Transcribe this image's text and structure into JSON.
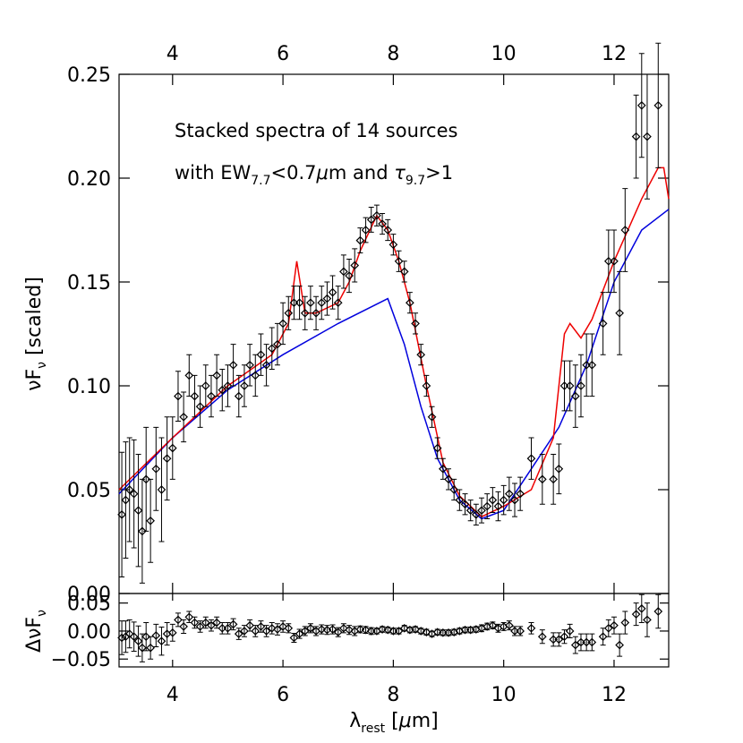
{
  "chart_data": {
    "type": "scatter",
    "annotations": [
      "Stacked spectra of 14 sources",
      [
        "with EW",
        "7.7",
        "<0.7",
        "μ",
        "m and ",
        "τ",
        "9.7",
        ">1"
      ]
    ],
    "ylabel": [
      "νF",
      "ν",
      " [scaled]"
    ],
    "residual_ylabel": [
      "ΔνF",
      "ν"
    ],
    "xlabel": [
      "λ",
      "rest",
      " [",
      "μ",
      "m]"
    ],
    "xlim": [
      3.03,
      12.99
    ],
    "xticks": [
      4,
      6,
      8,
      10,
      12
    ],
    "ylim": [
      0,
      0.25
    ],
    "yticks": [
      {
        "value": 0,
        "label": "0.00"
      },
      {
        "value": 0.05,
        "label": "0.05"
      },
      {
        "value": 0.1,
        "label": "0.10"
      },
      {
        "value": 0.15,
        "label": "0.15"
      },
      {
        "value": 0.2,
        "label": "0.20"
      },
      {
        "value": 0.25,
        "label": "0.25"
      }
    ],
    "y2lim": [
      -0.064,
      0.067
    ],
    "y2ticks": [
      {
        "value": -0.05,
        "label": "−0.05"
      },
      {
        "value": 0,
        "label": "0.00"
      },
      {
        "value": 0.05,
        "label": "0.05"
      }
    ],
    "data": {
      "color": "#000000",
      "x": [
        3.08,
        3.15,
        3.22,
        3.3,
        3.38,
        3.45,
        3.52,
        3.6,
        3.7,
        3.8,
        3.9,
        4.0,
        4.1,
        4.2,
        4.3,
        4.4,
        4.5,
        4.6,
        4.7,
        4.8,
        4.9,
        5.0,
        5.1,
        5.2,
        5.3,
        5.4,
        5.5,
        5.6,
        5.7,
        5.8,
        5.9,
        6.0,
        6.1,
        6.2,
        6.3,
        6.4,
        6.5,
        6.6,
        6.7,
        6.8,
        6.9,
        7.0,
        7.1,
        7.2,
        7.3,
        7.4,
        7.5,
        7.6,
        7.7,
        7.8,
        7.9,
        8.0,
        8.1,
        8.2,
        8.3,
        8.4,
        8.5,
        8.6,
        8.7,
        8.8,
        8.9,
        9.0,
        9.1,
        9.2,
        9.3,
        9.4,
        9.5,
        9.6,
        9.7,
        9.8,
        9.9,
        10.0,
        10.1,
        10.2,
        10.3,
        10.5,
        10.7,
        10.9,
        11.0,
        11.1,
        11.2,
        11.3,
        11.4,
        11.5,
        11.6,
        11.8,
        11.9,
        12.0,
        12.1,
        12.2,
        12.4,
        12.5,
        12.6,
        12.8
      ],
      "values": [
        0.038,
        0.045,
        0.05,
        0.048,
        0.04,
        0.03,
        0.055,
        0.035,
        0.06,
        0.05,
        0.065,
        0.07,
        0.095,
        0.085,
        0.105,
        0.095,
        0.09,
        0.1,
        0.095,
        0.105,
        0.098,
        0.1,
        0.11,
        0.095,
        0.1,
        0.11,
        0.105,
        0.115,
        0.11,
        0.118,
        0.12,
        0.13,
        0.135,
        0.14,
        0.14,
        0.135,
        0.14,
        0.135,
        0.14,
        0.142,
        0.145,
        0.14,
        0.155,
        0.153,
        0.158,
        0.17,
        0.175,
        0.18,
        0.182,
        0.178,
        0.175,
        0.168,
        0.16,
        0.155,
        0.14,
        0.13,
        0.115,
        0.1,
        0.085,
        0.07,
        0.06,
        0.055,
        0.05,
        0.045,
        0.043,
        0.04,
        0.038,
        0.04,
        0.042,
        0.045,
        0.042,
        0.045,
        0.048,
        0.045,
        0.048,
        0.065,
        0.055,
        0.055,
        0.06,
        0.1,
        0.1,
        0.095,
        0.1,
        0.11,
        0.11,
        0.13,
        0.16,
        0.16,
        0.135,
        0.175,
        0.22,
        0.235,
        0.22,
        0.235
      ],
      "errors": [
        0.03,
        0.028,
        0.025,
        0.026,
        0.027,
        0.025,
        0.025,
        0.02,
        0.02,
        0.025,
        0.02,
        0.015,
        0.012,
        0.012,
        0.01,
        0.01,
        0.01,
        0.01,
        0.01,
        0.01,
        0.01,
        0.01,
        0.01,
        0.01,
        0.01,
        0.01,
        0.01,
        0.01,
        0.01,
        0.01,
        0.01,
        0.01,
        0.008,
        0.008,
        0.008,
        0.008,
        0.008,
        0.008,
        0.008,
        0.008,
        0.008,
        0.008,
        0.008,
        0.008,
        0.008,
        0.006,
        0.006,
        0.006,
        0.005,
        0.005,
        0.005,
        0.005,
        0.005,
        0.005,
        0.005,
        0.005,
        0.005,
        0.005,
        0.005,
        0.005,
        0.005,
        0.005,
        0.005,
        0.005,
        0.005,
        0.005,
        0.005,
        0.006,
        0.006,
        0.006,
        0.007,
        0.007,
        0.008,
        0.008,
        0.008,
        0.01,
        0.012,
        0.012,
        0.012,
        0.012,
        0.012,
        0.015,
        0.015,
        0.015,
        0.015,
        0.015,
        0.015,
        0.015,
        0.02,
        0.02,
        0.02,
        0.025,
        0.03,
        0.03
      ],
      "residuals": [
        -0.012,
        -0.01,
        -0.005,
        -0.01,
        -0.018,
        -0.03,
        -0.01,
        -0.03,
        -0.008,
        -0.018,
        -0.005,
        -0.003,
        0.02,
        0.008,
        0.025,
        0.015,
        0.008,
        0.015,
        0.01,
        0.015,
        0.005,
        0.005,
        0.012,
        -0.005,
        0,
        0.01,
        0,
        0.008,
        0,
        0.005,
        0.003,
        0.008,
        0.005,
        -0.012,
        -0.005,
        0,
        0.005,
        0,
        0.003,
        0.002,
        0.003,
        -0.002,
        0.005,
        0.002,
        0,
        0.003,
        0.002,
        0,
        0,
        0.003,
        0.002,
        0,
        0,
        0.005,
        0.002,
        0.003,
        0,
        -0.002,
        -0.005,
        -0.002,
        -0.003,
        -0.003,
        -0.002,
        0,
        0.002,
        0.002,
        0.003,
        0.005,
        0.008,
        0.01,
        0.005,
        0.008,
        0.01,
        0,
        0,
        0.005,
        -0.01,
        -0.015,
        -0.015,
        -0.01,
        0,
        -0.025,
        -0.02,
        -0.02,
        -0.02,
        -0.01,
        0.005,
        0.01,
        -0.025,
        0.015,
        0.03,
        0.04,
        0.02,
        0.035
      ],
      "residual_errors": [
        0.03,
        0.028,
        0.025,
        0.026,
        0.027,
        0.025,
        0.025,
        0.02,
        0.02,
        0.025,
        0.02,
        0.015,
        0.012,
        0.012,
        0.01,
        0.01,
        0.01,
        0.01,
        0.01,
        0.01,
        0.01,
        0.01,
        0.01,
        0.01,
        0.01,
        0.01,
        0.01,
        0.01,
        0.01,
        0.01,
        0.01,
        0.01,
        0.008,
        0.008,
        0.008,
        0.008,
        0.008,
        0.008,
        0.008,
        0.008,
        0.008,
        0.008,
        0.008,
        0.008,
        0.008,
        0.006,
        0.006,
        0.006,
        0.005,
        0.005,
        0.005,
        0.005,
        0.005,
        0.005,
        0.005,
        0.005,
        0.005,
        0.005,
        0.005,
        0.005,
        0.005,
        0.005,
        0.005,
        0.005,
        0.005,
        0.005,
        0.005,
        0.006,
        0.006,
        0.006,
        0.007,
        0.007,
        0.008,
        0.008,
        0.008,
        0.01,
        0.012,
        0.012,
        0.012,
        0.012,
        0.012,
        0.015,
        0.015,
        0.015,
        0.015,
        0.015,
        0.015,
        0.015,
        0.02,
        0.02,
        0.02,
        0.025,
        0.03,
        0.03
      ]
    },
    "models": [
      {
        "color": "#0000dd",
        "x": [
          3.03,
          4,
          5,
          6,
          7,
          7.9,
          8.2,
          8.5,
          8.8,
          9.2,
          9.6,
          10,
          10.5,
          11,
          11.5,
          12,
          12.5,
          12.99
        ],
        "values": [
          0.048,
          0.075,
          0.098,
          0.115,
          0.13,
          0.142,
          0.12,
          0.09,
          0.065,
          0.045,
          0.036,
          0.04,
          0.06,
          0.08,
          0.11,
          0.15,
          0.175,
          0.185
        ]
      },
      {
        "color": "#ee0000",
        "x": [
          3.03,
          4,
          5,
          5.8,
          6.1,
          6.25,
          6.4,
          6.6,
          7,
          7.2,
          7.4,
          7.7,
          7.9,
          8.1,
          8.3,
          8.6,
          8.9,
          9.2,
          9.6,
          10,
          10.5,
          10.9,
          11.1,
          11.2,
          11.4,
          11.6,
          12,
          12.5,
          12.8,
          12.9,
          12.99
        ],
        "values": [
          0.05,
          0.075,
          0.1,
          0.115,
          0.13,
          0.16,
          0.135,
          0.135,
          0.14,
          0.15,
          0.165,
          0.182,
          0.175,
          0.16,
          0.14,
          0.1,
          0.063,
          0.047,
          0.037,
          0.042,
          0.05,
          0.075,
          0.125,
          0.13,
          0.123,
          0.132,
          0.16,
          0.19,
          0.205,
          0.205,
          0.19
        ]
      }
    ]
  }
}
